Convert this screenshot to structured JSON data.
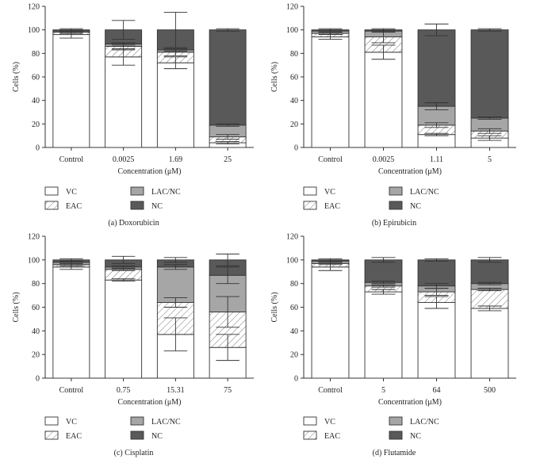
{
  "figure": {
    "legend_labels": [
      "VC",
      "LAC/NC",
      "EAC",
      "NC"
    ],
    "colors": {
      "VC": "#ffffff",
      "EAC": "#ffffff",
      "LAC/NC": "#a6a6a6",
      "NC": "#595959",
      "axis": "#333333"
    }
  },
  "chart_data": [
    {
      "type": "bar",
      "stacked": true,
      "caption": "(a)  Doxorubicin",
      "xlabel": "Concentration (μM)",
      "ylabel": "Cells (%)",
      "ylim": [
        0,
        120
      ],
      "yticks": [
        0,
        20,
        40,
        60,
        80,
        100,
        120
      ],
      "categories": [
        "Control",
        "0.0025",
        "1.69",
        "25"
      ],
      "series": [
        {
          "name": "VC",
          "values": [
            96,
            77,
            72,
            4
          ],
          "errors": [
            3,
            7,
            5,
            1
          ]
        },
        {
          "name": "EAC",
          "values": [
            2,
            9,
            9,
            5
          ],
          "errors": [
            1,
            3,
            3,
            2
          ]
        },
        {
          "name": "LAC/NC",
          "values": [
            1,
            2,
            2,
            10
          ],
          "errors": [
            1,
            1,
            1,
            1
          ]
        },
        {
          "name": "NC",
          "values": [
            1,
            12,
            17,
            81
          ],
          "errors": [
            1,
            8,
            15,
            1
          ]
        }
      ],
      "legend_position": "bottom"
    },
    {
      "type": "bar",
      "stacked": true,
      "caption": "(b)  Epirubicin",
      "xlabel": "Concentration (μM)",
      "ylabel": "Cells (%)",
      "ylim": [
        0,
        120
      ],
      "yticks": [
        0,
        20,
        40,
        60,
        80,
        100,
        120
      ],
      "categories": [
        "Control",
        "0.0025",
        "1.11",
        "5"
      ],
      "series": [
        {
          "name": "VC",
          "values": [
            94,
            81,
            11,
            8
          ],
          "errors": [
            2,
            6,
            1,
            2
          ]
        },
        {
          "name": "EAC",
          "values": [
            3,
            13,
            8,
            6
          ],
          "errors": [
            1,
            5,
            2,
            2
          ]
        },
        {
          "name": "LAC/NC",
          "values": [
            2,
            5,
            16,
            11
          ],
          "errors": [
            1,
            1,
            3,
            1
          ]
        },
        {
          "name": "NC",
          "values": [
            1,
            1,
            65,
            75
          ],
          "errors": [
            1,
            1,
            5,
            1
          ]
        }
      ],
      "legend_position": "bottom"
    },
    {
      "type": "bar",
      "stacked": true,
      "caption": "(c)  Cisplatin",
      "xlabel": "Concentration (μM)",
      "ylabel": "Cells (%)",
      "ylim": [
        0,
        120
      ],
      "yticks": [
        0,
        20,
        40,
        60,
        80,
        100,
        120
      ],
      "categories": [
        "Control",
        "0.75",
        "15.31",
        "75"
      ],
      "series": [
        {
          "name": "VC",
          "values": [
            94,
            83,
            37,
            26
          ],
          "errors": [
            2,
            1,
            14,
            11
          ]
        },
        {
          "name": "EAC",
          "values": [
            2,
            9,
            27,
            30
          ],
          "errors": [
            1,
            1,
            4,
            13
          ]
        },
        {
          "name": "LAC/NC",
          "values": [
            2,
            2,
            30,
            31
          ],
          "errors": [
            1,
            1,
            2,
            7
          ]
        },
        {
          "name": "NC",
          "values": [
            2,
            6,
            6,
            13
          ],
          "errors": [
            1,
            3,
            2,
            5
          ]
        }
      ],
      "legend_position": "bottom"
    },
    {
      "type": "bar",
      "stacked": true,
      "caption": "(d)  Flutamide",
      "xlabel": "Concentration (μM)",
      "ylabel": "Cells (%)",
      "ylim": [
        0,
        120
      ],
      "yticks": [
        0,
        20,
        40,
        60,
        80,
        100,
        120
      ],
      "categories": [
        "Control",
        "5",
        "64",
        "500"
      ],
      "series": [
        {
          "name": "VC",
          "values": [
            94,
            73,
            64,
            59
          ],
          "errors": [
            3,
            2,
            5,
            2
          ]
        },
        {
          "name": "EAC",
          "values": [
            3,
            5,
            9,
            16
          ],
          "errors": [
            1,
            1,
            3,
            1
          ]
        },
        {
          "name": "LAC/NC",
          "values": [
            2,
            3,
            5,
            5
          ],
          "errors": [
            1,
            1,
            2,
            1
          ]
        },
        {
          "name": "NC",
          "values": [
            1,
            19,
            22,
            20
          ],
          "errors": [
            1,
            2,
            1,
            2
          ]
        }
      ],
      "legend_position": "bottom"
    }
  ]
}
